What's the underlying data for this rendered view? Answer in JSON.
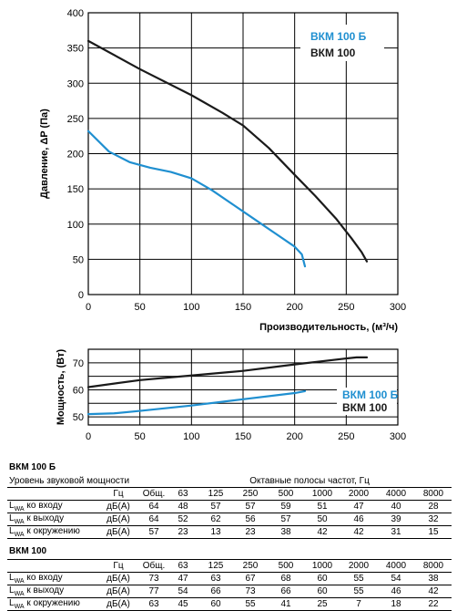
{
  "colors": {
    "bkm100b": "#1f8fd0",
    "bkm100": "#1a1a1a"
  },
  "chart_data": [
    {
      "type": "line",
      "xlabel": "Производительность, (м³/ч)",
      "ylabel": "Давление, ΔP (Па)",
      "xlim": [
        0,
        300
      ],
      "ylim": [
        0,
        400
      ],
      "x_ticks": [
        "0",
        "50",
        "100",
        "150",
        "200",
        "250",
        "300"
      ],
      "y_ticks": [
        "0",
        "50",
        "100",
        "150",
        "200",
        "250",
        "300",
        "350",
        "400"
      ],
      "grid": true,
      "legend_position": "top-right",
      "series": [
        {
          "name": "ВКМ 100 Б",
          "color": "#1f8fd0",
          "x": [
            0,
            20,
            40,
            60,
            80,
            100,
            120,
            140,
            160,
            180,
            200,
            207,
            210
          ],
          "y": [
            232,
            203,
            188,
            180,
            174,
            165,
            148,
            128,
            108,
            88,
            68,
            57,
            40
          ]
        },
        {
          "name": "ВКМ 100",
          "color": "#1a1a1a",
          "x": [
            0,
            50,
            100,
            130,
            150,
            175,
            200,
            220,
            240,
            255,
            265,
            270
          ],
          "y": [
            360,
            320,
            283,
            258,
            240,
            208,
            170,
            140,
            108,
            80,
            60,
            47
          ]
        }
      ]
    },
    {
      "type": "line",
      "ylabel": "Мощность, (Вт)",
      "xlim": [
        0,
        300
      ],
      "ylim": [
        47,
        75
      ],
      "x_ticks": [
        "0",
        "50",
        "100",
        "150",
        "200",
        "250",
        "300"
      ],
      "y_ticks": [
        "50",
        "60",
        "70"
      ],
      "grid": true,
      "legend_position": "right",
      "series": [
        {
          "name": "ВКМ 100 Б",
          "color": "#1f8fd0",
          "x": [
            0,
            25,
            50,
            100,
            150,
            200,
            210
          ],
          "y": [
            51,
            51.3,
            52.2,
            54.2,
            56.5,
            58.8,
            59.5
          ]
        },
        {
          "name": "ВКМ 100",
          "color": "#1a1a1a",
          "x": [
            0,
            50,
            100,
            150,
            200,
            250,
            260,
            270
          ],
          "y": [
            61,
            63.6,
            65.3,
            67,
            69.4,
            71.6,
            72,
            72
          ]
        }
      ]
    }
  ],
  "tables": [
    {
      "title": "ВКМ 100 Б",
      "header_left": "Уровень звуковой мощности",
      "header_right": "Октавные полосы частот, Гц",
      "freq_row": [
        "Гц",
        "Общ.",
        "63",
        "125",
        "250",
        "500",
        "1000",
        "2000",
        "4000",
        "8000"
      ],
      "rows": [
        {
          "sub": "WA",
          "label": "ко входу",
          "unit": "дБ(А)",
          "values": [
            "64",
            "48",
            "57",
            "57",
            "59",
            "51",
            "47",
            "40",
            "28"
          ]
        },
        {
          "sub": "WA",
          "label": "к выходу",
          "unit": "дБ(А)",
          "values": [
            "64",
            "52",
            "62",
            "56",
            "57",
            "50",
            "46",
            "39",
            "32"
          ]
        },
        {
          "sub": "WA",
          "label": "к окружению",
          "unit": "дБ(А)",
          "values": [
            "57",
            "23",
            "13",
            "23",
            "38",
            "42",
            "42",
            "31",
            "15"
          ]
        }
      ]
    },
    {
      "title": "ВКМ 100",
      "freq_row": [
        "Гц",
        "Общ.",
        "63",
        "125",
        "250",
        "500",
        "1000",
        "2000",
        "4000",
        "8000"
      ],
      "rows": [
        {
          "sub": "WA",
          "label": "ко входу",
          "unit": "дБ(А)",
          "values": [
            "73",
            "47",
            "63",
            "67",
            "68",
            "60",
            "55",
            "54",
            "38"
          ]
        },
        {
          "sub": "WA",
          "label": "к выходу",
          "unit": "дБ(А)",
          "values": [
            "77",
            "54",
            "66",
            "73",
            "66",
            "60",
            "55",
            "46",
            "42"
          ]
        },
        {
          "sub": "WA",
          "label": "к окружению",
          "unit": "дБ(А)",
          "values": [
            "63",
            "45",
            "60",
            "55",
            "41",
            "25",
            "7",
            "18",
            "22"
          ]
        }
      ]
    }
  ]
}
